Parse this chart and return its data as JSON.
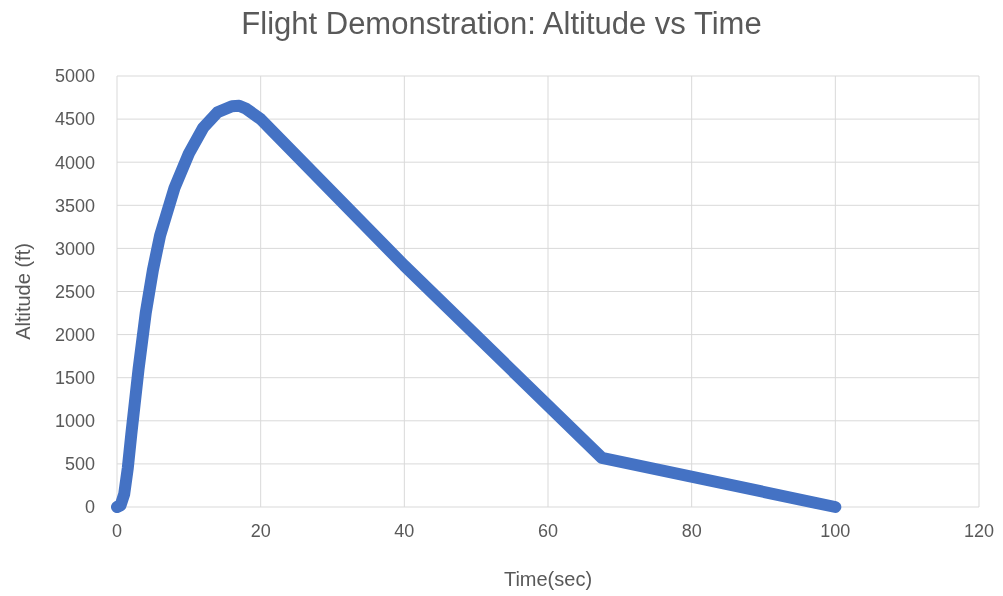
{
  "chart_data": {
    "type": "line",
    "title": "Flight Demonstration: Altitude vs Time",
    "xlabel": "Time(sec)",
    "ylabel": "Altitude (ft)",
    "x": [
      0,
      0.5,
      1,
      1.5,
      2,
      3,
      4,
      5,
      6,
      8,
      10,
      12,
      14,
      16,
      17,
      18,
      20,
      40,
      67.5,
      100
    ],
    "series": [
      {
        "color": "#4472c4",
        "values": [
          0,
          20,
          150,
          450,
          850,
          1600,
          2250,
          2750,
          3150,
          3700,
          4100,
          4400,
          4580,
          4650,
          4655,
          4620,
          4500,
          2800,
          570,
          0
        ]
      }
    ],
    "xlim": [
      0,
      120
    ],
    "xticks": [
      0,
      20,
      40,
      60,
      80,
      100,
      120
    ],
    "ylim": [
      0,
      5000
    ],
    "yticks": [
      0,
      500,
      1000,
      1500,
      2000,
      2500,
      3000,
      3500,
      4000,
      4500,
      5000
    ],
    "grid": true
  }
}
